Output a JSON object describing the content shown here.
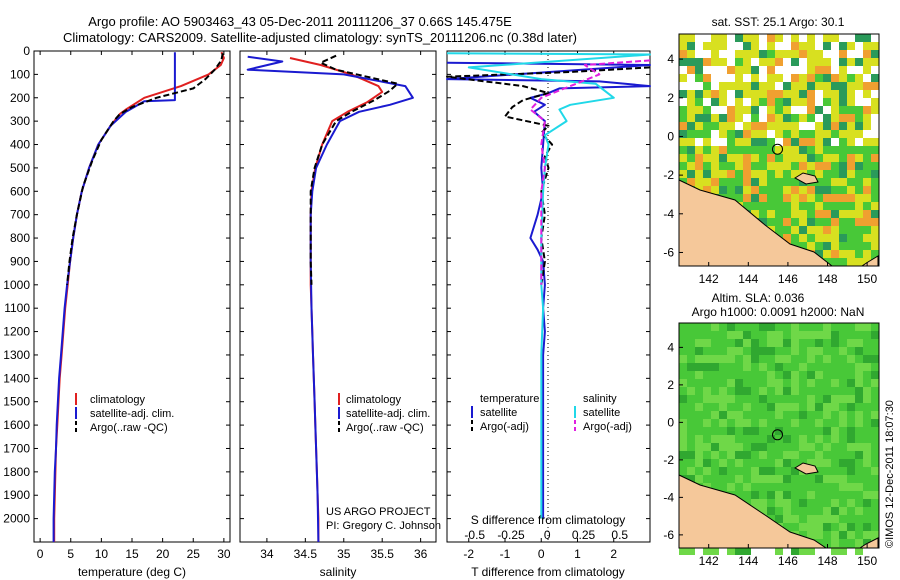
{
  "header": {
    "line1": "Argo profile: AO 5903463_43 05-Dec-2011 20111206_37 0.66S 145.475E",
    "line2": "Climatology: CARS2009. Satellite-adjusted climatology: synTS_20111206.nc (0.38d later)"
  },
  "colors": {
    "climatology": "#e02020",
    "satellite": "#1a1ad0",
    "argo": "#000000",
    "sal_satellite": "#20d8e8",
    "sal_argo": "#e020e0",
    "land": "#f5c89a",
    "map_green": "#48c838",
    "map_yellow": "#d8e020",
    "map_orange": "#f0a030"
  },
  "chart_data": [
    {
      "type": "line",
      "xlabel": "temperature (deg C)",
      "ylabel": "",
      "xlim": [
        -1,
        31
      ],
      "ylim": [
        2100,
        0
      ],
      "xticks": [
        0,
        5,
        10,
        15,
        20,
        25,
        30
      ],
      "yticks": [
        0,
        100,
        200,
        300,
        400,
        500,
        600,
        700,
        800,
        900,
        1000,
        1100,
        1200,
        1300,
        1400,
        1500,
        1600,
        1700,
        1800,
        1900,
        2000
      ],
      "legend": [
        "climatology",
        "satellite-adj. clim.",
        "Argo(..raw -QC)"
      ],
      "series": [
        {
          "name": "climatology",
          "style": "solid",
          "color": "#e02020",
          "points": [
            [
              29.6,
              5
            ],
            [
              30,
              30
            ],
            [
              29.5,
              60
            ],
            [
              27.5,
              100
            ],
            [
              23,
              150
            ],
            [
              17,
              200
            ],
            [
              14,
              250
            ],
            [
              13,
              270
            ],
            [
              11.5,
              320
            ],
            [
              9.5,
              400
            ],
            [
              8,
              500
            ],
            [
              6.8,
              600
            ],
            [
              6,
              700
            ],
            [
              5.4,
              800
            ],
            [
              4.9,
              900
            ],
            [
              4.5,
              1000
            ],
            [
              4.1,
              1100
            ],
            [
              3.8,
              1200
            ],
            [
              3.5,
              1300
            ],
            [
              3.2,
              1400
            ],
            [
              3,
              1500
            ],
            [
              2.8,
              1600
            ],
            [
              2.6,
              1700
            ],
            [
              2.5,
              1800
            ],
            [
              2.4,
              1900
            ],
            [
              2.3,
              2000
            ],
            [
              2.3,
              2100
            ]
          ]
        },
        {
          "name": "satellite-adj. clim.",
          "style": "solid",
          "color": "#1a1ad0",
          "points": [
            [
              22,
              5
            ],
            [
              22,
              210
            ],
            [
              17,
              215
            ],
            [
              14,
              260
            ],
            [
              11.5,
              320
            ],
            [
              9.5,
              400
            ],
            [
              8,
              500
            ],
            [
              6.8,
              600
            ],
            [
              6,
              700
            ],
            [
              5.4,
              800
            ],
            [
              4.9,
              900
            ],
            [
              4.4,
              1000
            ],
            [
              4,
              1100
            ],
            [
              3.7,
              1200
            ],
            [
              3.4,
              1300
            ],
            [
              3.1,
              1400
            ],
            [
              2.9,
              1500
            ],
            [
              2.7,
              1600
            ],
            [
              2.6,
              1700
            ],
            [
              2.4,
              1800
            ],
            [
              2.3,
              1900
            ],
            [
              2.2,
              2000
            ],
            [
              2.2,
              2100
            ]
          ]
        },
        {
          "name": "Argo(..raw -QC)",
          "style": "dashed",
          "color": "#000000",
          "points": [
            [
              29.8,
              10
            ],
            [
              29.6,
              40
            ],
            [
              28.5,
              80
            ],
            [
              27,
              120
            ],
            [
              25,
              160
            ],
            [
              19,
              200
            ],
            [
              15,
              240
            ],
            [
              13,
              270
            ],
            [
              12,
              300
            ],
            [
              10,
              380
            ],
            [
              8.5,
              470
            ],
            [
              7,
              580
            ],
            [
              6,
              700
            ],
            [
              5.3,
              800
            ],
            [
              4.8,
              900
            ],
            [
              4.4,
              1000
            ]
          ]
        }
      ]
    },
    {
      "type": "line",
      "xlabel": "salinity",
      "ylabel": "",
      "xlim": [
        33.65,
        36.2
      ],
      "ylim": [
        2100,
        0
      ],
      "xticks": [
        34,
        34.5,
        35,
        35.5,
        36
      ],
      "legend": [
        "climatology",
        "satellite-adj. clim.",
        "Argo(..raw -QC)"
      ],
      "annotations": [
        "US ARGO PROJECT",
        "PI: Gregory C. Johnson"
      ],
      "series": [
        {
          "name": "climatology",
          "style": "solid",
          "color": "#e02020",
          "points": [
            [
              34.3,
              30
            ],
            [
              34.7,
              60
            ],
            [
              35.1,
              100
            ],
            [
              35.45,
              150
            ],
            [
              35.5,
              175
            ],
            [
              35.3,
              220
            ],
            [
              35.05,
              260
            ],
            [
              34.85,
              300
            ],
            [
              34.72,
              400
            ],
            [
              34.63,
              500
            ],
            [
              34.58,
              600
            ],
            [
              34.57,
              700
            ],
            [
              34.57,
              800
            ],
            [
              34.57,
              900
            ],
            [
              34.57,
              1000
            ],
            [
              34.58,
              1100
            ],
            [
              34.59,
              1200
            ],
            [
              34.6,
              1300
            ],
            [
              34.61,
              1400
            ],
            [
              34.62,
              1500
            ],
            [
              34.63,
              1600
            ],
            [
              34.64,
              1700
            ],
            [
              34.65,
              1800
            ],
            [
              34.66,
              1900
            ],
            [
              34.67,
              2000
            ],
            [
              34.67,
              2100
            ]
          ]
        },
        {
          "name": "satellite-adj. clim.",
          "style": "solid",
          "color": "#1a1ad0",
          "points": [
            [
              33.75,
              25
            ],
            [
              34.2,
              45
            ],
            [
              33.75,
              80
            ],
            [
              35,
              100
            ],
            [
              35.8,
              150
            ],
            [
              35.9,
              200
            ],
            [
              35.6,
              230
            ],
            [
              35.2,
              260
            ],
            [
              34.95,
              300
            ],
            [
              34.78,
              400
            ],
            [
              34.64,
              500
            ],
            [
              34.59,
              600
            ],
            [
              34.57,
              700
            ],
            [
              34.57,
              900
            ],
            [
              34.58,
              1100
            ],
            [
              34.6,
              1300
            ],
            [
              34.62,
              1500
            ],
            [
              34.64,
              1700
            ],
            [
              34.66,
              1900
            ],
            [
              34.67,
              2100
            ]
          ]
        },
        {
          "name": "Argo(..raw -QC)",
          "style": "dashed",
          "color": "#000000",
          "points": [
            [
              34.9,
              20
            ],
            [
              34.7,
              50
            ],
            [
              34.9,
              80
            ],
            [
              35.3,
              110
            ],
            [
              35.7,
              140
            ],
            [
              35.6,
              170
            ],
            [
              35.4,
              210
            ],
            [
              35.1,
              260
            ],
            [
              34.9,
              300
            ],
            [
              34.72,
              400
            ],
            [
              34.62,
              500
            ],
            [
              34.57,
              600
            ],
            [
              34.57,
              700
            ],
            [
              34.57,
              800
            ],
            [
              34.57,
              900
            ],
            [
              34.58,
              1000
            ]
          ]
        }
      ]
    },
    {
      "type": "line",
      "xlabel": "T difference from climatology",
      "xlabel2": "S difference from climatology",
      "xlim": [
        -2.6,
        3
      ],
      "ylim": [
        2100,
        0
      ],
      "xticks": [
        -2,
        -1,
        0,
        1,
        2
      ],
      "xticks2": [
        {
          "label": "-0.5",
          "x": -2
        },
        {
          "label": "-0.25",
          "x": -1
        },
        {
          "label": "0",
          "x": 0
        },
        {
          "label": "0.25",
          "x": 1
        },
        {
          "label": "0.5",
          "x": 2
        }
      ],
      "legend_headers": [
        "temperature",
        "salinity"
      ],
      "legend": [
        "satellite",
        "Argo(-adj)",
        "satellite",
        "Argo(-adj)"
      ],
      "series": [
        {
          "name": "T satellite",
          "style": "solid",
          "color": "#1a1ad0",
          "points": [
            [
              -2.6,
              50
            ],
            [
              3,
              60
            ],
            [
              -2.6,
              120
            ],
            [
              1.6,
              130
            ],
            [
              3,
              150
            ],
            [
              0.5,
              160
            ],
            [
              0.2,
              180
            ],
            [
              -0.3,
              200
            ],
            [
              0.1,
              230
            ],
            [
              -0.2,
              260
            ],
            [
              0.1,
              300
            ],
            [
              0.05,
              400
            ],
            [
              0,
              500
            ],
            [
              0.05,
              600
            ],
            [
              -0.1,
              700
            ],
            [
              -0.3,
              800
            ],
            [
              -0.1,
              850
            ],
            [
              0.05,
              900
            ],
            [
              0.1,
              1000
            ],
            [
              0.05,
              1100
            ],
            [
              0.1,
              1200
            ],
            [
              0.05,
              1300
            ],
            [
              0.05,
              1500
            ],
            [
              0.05,
              1700
            ],
            [
              0.05,
              1900
            ],
            [
              0.05,
              2000
            ]
          ]
        },
        {
          "name": "T Argo(-adj)",
          "style": "dashed",
          "color": "#000000",
          "points": [
            [
              3,
              70
            ],
            [
              0.8,
              90
            ],
            [
              -2.6,
              110
            ],
            [
              -0.5,
              150
            ],
            [
              0.2,
              180
            ],
            [
              -0.5,
              210
            ],
            [
              -0.8,
              240
            ],
            [
              -1,
              280
            ],
            [
              0.2,
              320
            ],
            [
              0,
              350
            ],
            [
              0.3,
              400
            ],
            [
              0.1,
              450
            ],
            [
              0.2,
              500
            ],
            [
              0,
              600
            ],
            [
              0.1,
              700
            ],
            [
              0,
              800
            ],
            [
              0.1,
              900
            ],
            [
              0,
              1000
            ]
          ]
        },
        {
          "name": "S satellite",
          "style": "solid",
          "color": "#20d8e8",
          "points": [
            [
              -2.6,
              10
            ],
            [
              3,
              15
            ],
            [
              -2,
              70
            ],
            [
              0,
              120
            ],
            [
              1.5,
              140
            ],
            [
              2,
              200
            ],
            [
              0.8,
              230
            ],
            [
              0.5,
              250
            ],
            [
              0.7,
              300
            ],
            [
              0.1,
              360
            ],
            [
              0.2,
              400
            ],
            [
              0.1,
              500
            ],
            [
              0.05,
              600
            ],
            [
              0,
              800
            ],
            [
              0,
              900
            ],
            [
              0,
              1000
            ],
            [
              0.05,
              1100
            ],
            [
              0,
              1300
            ],
            [
              0,
              1500
            ],
            [
              0,
              1700
            ],
            [
              0,
              1900
            ],
            [
              0,
              2000
            ]
          ]
        },
        {
          "name": "S Argo(-adj)",
          "style": "dashed",
          "color": "#e020e0",
          "points": [
            [
              3,
              40
            ],
            [
              1.2,
              60
            ],
            [
              1.6,
              100
            ],
            [
              0.8,
              150
            ],
            [
              0,
              200
            ],
            [
              -0.3,
              250
            ],
            [
              0.1,
              300
            ],
            [
              0,
              400
            ],
            [
              0.1,
              500
            ],
            [
              0,
              600
            ],
            [
              0,
              700
            ],
            [
              0,
              800
            ],
            [
              0,
              900
            ],
            [
              0,
              1000
            ]
          ]
        }
      ]
    },
    {
      "type": "heatmap",
      "title": "sat. SST: 25.1  Argo: 30.1",
      "xlim": [
        140.5,
        150.6
      ],
      "ylim": [
        -6.7,
        5.3
      ],
      "xticks": [
        142,
        144,
        146,
        148,
        150
      ],
      "yticks": [
        4,
        2,
        0,
        -2,
        -4,
        -6
      ],
      "marker": [
        145.475,
        -0.66
      ]
    },
    {
      "type": "heatmap",
      "title": "Altim. SLA: 0.036",
      "subtitle": "Argo h1000: 0.0091 h2000: NaN",
      "xlim": [
        140.5,
        150.6
      ],
      "ylim": [
        -6.7,
        5.3
      ],
      "xticks": [
        142,
        144,
        146,
        148,
        150
      ],
      "yticks": [
        4,
        2,
        0,
        -2,
        -4,
        -6
      ],
      "marker": [
        145.475,
        -0.66
      ]
    }
  ],
  "watermark": "©IMOS 12-Dec-2011 18:07:30"
}
